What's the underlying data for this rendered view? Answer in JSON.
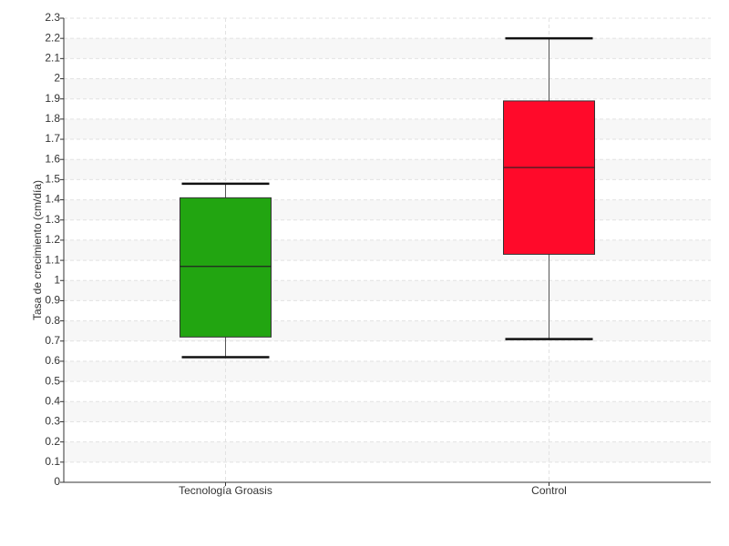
{
  "chart_data": {
    "type": "box",
    "y_label": "Tasa de crecimiento (cm/día)",
    "categories": [
      "Tecnología Groasis",
      "Control"
    ],
    "colors": [
      "#22a511",
      "#ff0a2a"
    ],
    "values": [
      {
        "min": 0.62,
        "q1": 0.72,
        "median": 1.07,
        "q3": 1.41,
        "max": 1.48
      },
      {
        "min": 0.71,
        "q1": 1.13,
        "median": 1.56,
        "q3": 1.89,
        "max": 2.2
      }
    ],
    "ylim": [
      0,
      2.3
    ],
    "yticks": [
      0,
      0.1,
      0.2,
      0.3,
      0.4,
      0.5,
      0.6,
      0.7,
      0.8,
      0.9,
      1,
      1.1,
      1.2,
      1.3,
      1.4,
      1.5,
      1.6,
      1.7,
      1.8,
      1.9,
      2,
      2.1,
      2.2,
      2.3
    ],
    "grid": true
  }
}
